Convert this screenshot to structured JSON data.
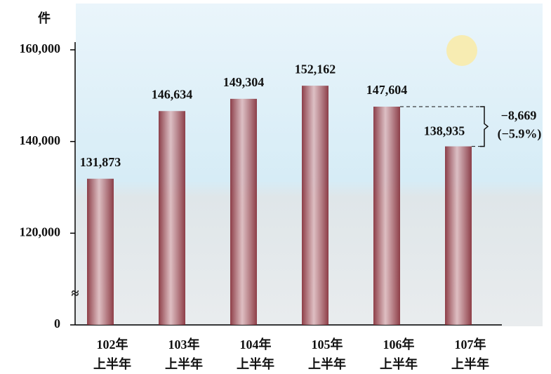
{
  "chart_data": {
    "type": "bar",
    "y_label": "件",
    "categories": [
      [
        "102年",
        "上半年"
      ],
      [
        "103年",
        "上半年"
      ],
      [
        "104年",
        "上半年"
      ],
      [
        "105年",
        "上半年"
      ],
      [
        "106年",
        "上半年"
      ],
      [
        "107年",
        "上半年"
      ]
    ],
    "values": [
      131873,
      146634,
      149304,
      152162,
      147604,
      138935
    ],
    "value_labels": [
      "131,873",
      "146,634",
      "149,304",
      "152,162",
      "147,604",
      "138,935"
    ],
    "color": "#8b2530",
    "ylim": [
      0,
      160000
    ],
    "axis_break": [
      0,
      100000
    ],
    "yticks": [
      0,
      {
        "value": 120000,
        "label": "120,000"
      },
      {
        "value": 140000,
        "label": "140,000"
      },
      {
        "value": 160000,
        "label": "160,000"
      }
    ],
    "annotation": {
      "from": 4,
      "to": 5,
      "change": "−8,669",
      "percent": "(−5.9%)"
    }
  }
}
